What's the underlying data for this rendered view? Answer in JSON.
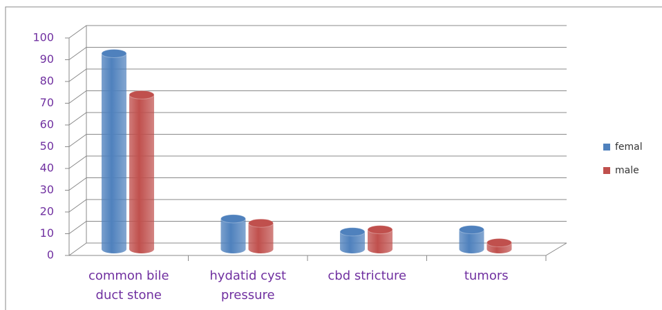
{
  "chart_data": {
    "type": "bar",
    "categories": [
      "common bile duct stone",
      "hydatid cyst pressure",
      "cbd stricture",
      "tumors"
    ],
    "series": [
      {
        "name": "femal",
        "color": "#4f81bd",
        "values": [
          90,
          14,
          8,
          9
        ]
      },
      {
        "name": "male",
        "color": "#c0504d",
        "values": [
          71,
          12,
          9,
          3
        ]
      }
    ],
    "ylim": [
      0,
      100
    ],
    "yticks": [
      0,
      10,
      20,
      30,
      40,
      50,
      60,
      70,
      80,
      90,
      100
    ],
    "grid": true,
    "legend": "right"
  }
}
